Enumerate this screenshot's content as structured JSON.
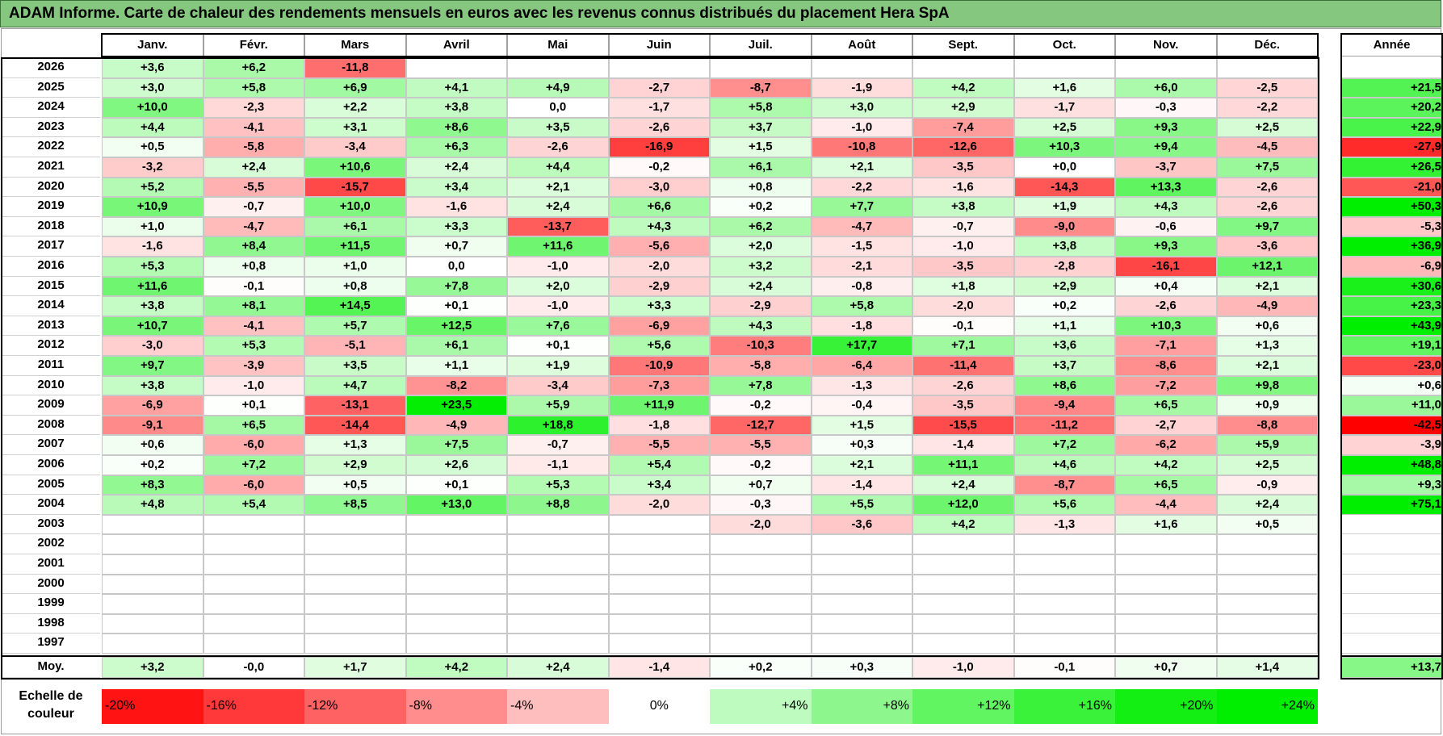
{
  "title": "ADAM Informe. Carte de chaleur des rendements mensuels en euros avec les revenus connus distribués du placement Hera SpA",
  "chart_data": {
    "type": "heatmap",
    "months": [
      "Janv.",
      "Févr.",
      "Mars",
      "Avril",
      "Mai",
      "Juin",
      "Juil.",
      "Août",
      "Sept.",
      "Oct.",
      "Nov.",
      "Déc."
    ],
    "annual_label": "Année",
    "years": [
      "2026",
      "2025",
      "2024",
      "2023",
      "2022",
      "2021",
      "2020",
      "2019",
      "2018",
      "2017",
      "2016",
      "2015",
      "2014",
      "2013",
      "2012",
      "2011",
      "2010",
      "2009",
      "2008",
      "2007",
      "2006",
      "2005",
      "2004",
      "2003",
      "2002",
      "2001",
      "2000",
      "1999",
      "1998",
      "1997"
    ],
    "values": [
      [
        "+3,6",
        "+6,2",
        "-11,8",
        "",
        "",
        "",
        "",
        "",
        "",
        "",
        "",
        ""
      ],
      [
        "+3,0",
        "+5,8",
        "+6,9",
        "+4,1",
        "+4,9",
        "-2,7",
        "-8,7",
        "-1,9",
        "+4,2",
        "+1,6",
        "+6,0",
        "-2,5"
      ],
      [
        "+10,0",
        "-2,3",
        "+2,2",
        "+3,8",
        "0,0",
        "-1,7",
        "+5,8",
        "+3,0",
        "+2,9",
        "-1,7",
        "-0,3",
        "-2,2"
      ],
      [
        "+4,4",
        "-4,1",
        "+3,1",
        "+8,6",
        "+3,5",
        "-2,6",
        "+3,7",
        "-1,0",
        "-7,4",
        "+2,5",
        "+9,3",
        "+2,5"
      ],
      [
        "+0,5",
        "-5,8",
        "-3,4",
        "+6,3",
        "-2,6",
        "-16,9",
        "+1,5",
        "-10,8",
        "-12,6",
        "+10,3",
        "+9,4",
        "-4,5"
      ],
      [
        "-3,2",
        "+2,4",
        "+10,6",
        "+2,4",
        "+4,4",
        "-0,2",
        "+6,1",
        "+2,1",
        "-3,5",
        "+0,0",
        "-3,7",
        "+7,5"
      ],
      [
        "+5,2",
        "-5,5",
        "-15,7",
        "+3,4",
        "+2,1",
        "-3,0",
        "+0,8",
        "-2,2",
        "-1,6",
        "-14,3",
        "+13,3",
        "-2,6"
      ],
      [
        "+10,9",
        "-0,7",
        "+10,0",
        "-1,6",
        "+2,4",
        "+6,6",
        "+0,2",
        "+7,7",
        "+3,8",
        "+1,9",
        "+4,3",
        "-2,6"
      ],
      [
        "+1,0",
        "-4,7",
        "+6,1",
        "+3,3",
        "-13,7",
        "+4,3",
        "+6,2",
        "-4,7",
        "-0,7",
        "-9,0",
        "-0,6",
        "+9,7"
      ],
      [
        "-1,6",
        "+8,4",
        "+11,5",
        "+0,7",
        "+11,6",
        "-5,6",
        "+2,0",
        "-1,5",
        "-1,0",
        "+3,8",
        "+9,3",
        "-3,6"
      ],
      [
        "+5,3",
        "+0,8",
        "+1,0",
        "0,0",
        "-1,0",
        "-2,0",
        "+3,2",
        "-2,1",
        "-3,5",
        "-2,8",
        "-16,1",
        "+12,1"
      ],
      [
        "+11,6",
        "-0,1",
        "+0,8",
        "+7,8",
        "+2,0",
        "-2,9",
        "+2,4",
        "-0,8",
        "+1,8",
        "+2,9",
        "+0,4",
        "+2,1"
      ],
      [
        "+3,8",
        "+8,1",
        "+14,5",
        "+0,1",
        "-1,0",
        "+3,3",
        "-2,9",
        "+5,8",
        "-2,0",
        "+0,2",
        "-2,6",
        "-4,9"
      ],
      [
        "+10,7",
        "-4,1",
        "+5,7",
        "+12,5",
        "+7,6",
        "-6,9",
        "+4,3",
        "-1,8",
        "-0,1",
        "+1,1",
        "+10,3",
        "+0,6"
      ],
      [
        "-3,0",
        "+5,3",
        "-5,1",
        "+6,1",
        "+0,1",
        "+5,6",
        "-10,3",
        "+17,7",
        "+7,1",
        "+3,6",
        "-7,1",
        "+1,3"
      ],
      [
        "+9,7",
        "-3,9",
        "+3,5",
        "+1,1",
        "+1,9",
        "-10,9",
        "-5,8",
        "-6,4",
        "-11,4",
        "+3,7",
        "-8,6",
        "+2,1"
      ],
      [
        "+3,8",
        "-1,0",
        "+4,7",
        "-8,2",
        "-3,4",
        "-7,3",
        "+7,8",
        "-1,3",
        "-2,6",
        "+8,6",
        "-7,2",
        "+9,8"
      ],
      [
        "-6,9",
        "+0,1",
        "-13,1",
        "+23,5",
        "+5,9",
        "+11,9",
        "-0,2",
        "-0,4",
        "-3,5",
        "-9,4",
        "+6,5",
        "+0,9"
      ],
      [
        "-9,1",
        "+6,5",
        "-14,4",
        "-4,9",
        "+18,8",
        "-1,8",
        "-12,7",
        "+1,5",
        "-15,5",
        "-11,2",
        "-2,7",
        "-8,8"
      ],
      [
        "+0,6",
        "-6,0",
        "+1,3",
        "+7,5",
        "-0,7",
        "-5,5",
        "-5,5",
        "+0,3",
        "-1,4",
        "+7,2",
        "-6,2",
        "+5,9"
      ],
      [
        "+0,2",
        "+7,2",
        "+2,9",
        "+2,6",
        "-1,1",
        "+5,4",
        "-0,2",
        "+2,1",
        "+11,1",
        "+4,6",
        "+4,2",
        "+2,5"
      ],
      [
        "+8,3",
        "-6,0",
        "+0,5",
        "+0,1",
        "+5,3",
        "+3,4",
        "+0,7",
        "-1,4",
        "+2,4",
        "-8,7",
        "+6,5",
        "-0,9"
      ],
      [
        "+4,8",
        "+5,4",
        "+8,5",
        "+13,0",
        "+8,8",
        "-2,0",
        "-0,3",
        "+5,5",
        "+12,0",
        "+5,6",
        "-4,4",
        "+2,4"
      ],
      [
        "",
        "",
        "",
        "",
        "",
        "",
        "-2,0",
        "-3,6",
        "+4,2",
        "-1,3",
        "+1,6",
        "+0,5"
      ],
      [
        "",
        "",
        "",
        "",
        "",
        "",
        "",
        "",
        "",
        "",
        "",
        ""
      ],
      [
        "",
        "",
        "",
        "",
        "",
        "",
        "",
        "",
        "",
        "",
        "",
        ""
      ],
      [
        "",
        "",
        "",
        "",
        "",
        "",
        "",
        "",
        "",
        "",
        "",
        ""
      ],
      [
        "",
        "",
        "",
        "",
        "",
        "",
        "",
        "",
        "",
        "",
        "",
        ""
      ],
      [
        "",
        "",
        "",
        "",
        "",
        "",
        "",
        "",
        "",
        "",
        "",
        ""
      ],
      [
        "",
        "",
        "",
        "",
        "",
        "",
        "",
        "",
        "",
        "",
        "",
        ""
      ]
    ],
    "annual": [
      "",
      "+21,5",
      "+20,2",
      "+22,9",
      "-27,9",
      "+26,5",
      "-21,0",
      "+50,3",
      "-5,3",
      "+36,9",
      "-6,9",
      "+30,6",
      "+23,3",
      "+43,9",
      "+19,1",
      "-23,0",
      "+0,6",
      "+11,0",
      "-42,5",
      "-3,9",
      "+48,8",
      "+9,3",
      "+75,1",
      "",
      "",
      "",
      "",
      "",
      "",
      ""
    ],
    "average_label": "Moy.",
    "averages": [
      "+3,2",
      "-0,0",
      "+1,7",
      "+4,2",
      "+2,4",
      "-1,4",
      "+0,2",
      "+0,3",
      "-1,0",
      "-0,1",
      "+0,7",
      "+1,4"
    ],
    "annual_average": "+13,7",
    "scale_label": [
      "Echelle de",
      "couleur"
    ],
    "scale_labels": [
      "-20%",
      "-16%",
      "-12%",
      "-8%",
      "-4%",
      "0%",
      "+4%",
      "+8%",
      "+12%",
      "+16%",
      "+20%",
      "+24%"
    ],
    "scale_values": [
      -20,
      -16,
      -12,
      -8,
      -4,
      0,
      4,
      8,
      12,
      16,
      20,
      24
    ],
    "colors": {
      "negative_max": "#ff0000",
      "neutral": "#ffffff",
      "positive_max": "#00ee00",
      "title_bg": "#85c77f"
    }
  }
}
